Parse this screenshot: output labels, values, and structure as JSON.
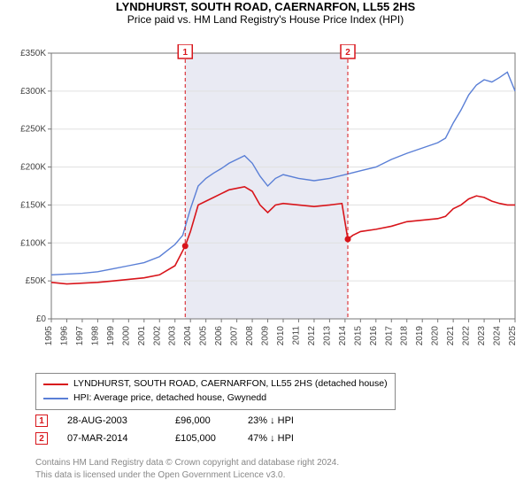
{
  "title": "LYNDHURST, SOUTH ROAD, CAERNARFON, LL55 2HS",
  "subtitle": "Price paid vs. HM Land Registry's House Price Index (HPI)",
  "title_fontsize": 13,
  "subtitle_fontsize": 12,
  "footer_fontsize": 10,
  "footer_color": "#888888",
  "chart": {
    "type": "line",
    "background_color": "#ffffff",
    "plot_border_color": "#777777",
    "grid_color": "#e0e0e0",
    "shaded_band_color": "#e9eaf3",
    "shaded_band_xstart": 2003.66,
    "shaded_band_xend": 2014.18,
    "xaxis": {
      "min": 1995,
      "max": 2025,
      "ticks": [
        1995,
        1996,
        1997,
        1998,
        1999,
        2000,
        2001,
        2002,
        2003,
        2004,
        2005,
        2006,
        2007,
        2008,
        2009,
        2010,
        2011,
        2012,
        2013,
        2014,
        2015,
        2016,
        2017,
        2018,
        2019,
        2020,
        2021,
        2022,
        2023,
        2024,
        2025
      ],
      "tick_fontsize": 10,
      "tick_rotation": -90,
      "tick_color": "#444444"
    },
    "yaxis": {
      "min": 0,
      "max": 350000,
      "ticks": [
        0,
        50000,
        100000,
        150000,
        200000,
        250000,
        300000,
        350000
      ],
      "tick_labels": [
        "£0",
        "£50K",
        "£100K",
        "£150K",
        "£200K",
        "£250K",
        "£300K",
        "£350K"
      ],
      "tick_fontsize": 10,
      "tick_color": "#444444"
    },
    "series": [
      {
        "name": "property",
        "label": "LYNDHURST, SOUTH ROAD, CAERNARFON, LL55 2HS (detached house)",
        "color": "#d8151b",
        "line_width": 1.6,
        "points": [
          [
            1995,
            48000
          ],
          [
            1996,
            46000
          ],
          [
            1997,
            47000
          ],
          [
            1998,
            48000
          ],
          [
            1999,
            50000
          ],
          [
            2000,
            52000
          ],
          [
            2001,
            54000
          ],
          [
            2002,
            58000
          ],
          [
            2003,
            70000
          ],
          [
            2003.66,
            96000
          ],
          [
            2004,
            115000
          ],
          [
            2004.5,
            150000
          ],
          [
            2005,
            155000
          ],
          [
            2005.5,
            160000
          ],
          [
            2006,
            165000
          ],
          [
            2006.5,
            170000
          ],
          [
            2007,
            172000
          ],
          [
            2007.5,
            174000
          ],
          [
            2008,
            168000
          ],
          [
            2008.5,
            150000
          ],
          [
            2009,
            140000
          ],
          [
            2009.5,
            150000
          ],
          [
            2010,
            152000
          ],
          [
            2011,
            150000
          ],
          [
            2012,
            148000
          ],
          [
            2013,
            150000
          ],
          [
            2013.8,
            152000
          ],
          [
            2014.18,
            105000
          ],
          [
            2014.5,
            110000
          ],
          [
            2015,
            115000
          ],
          [
            2016,
            118000
          ],
          [
            2017,
            122000
          ],
          [
            2018,
            128000
          ],
          [
            2019,
            130000
          ],
          [
            2020,
            132000
          ],
          [
            2020.5,
            135000
          ],
          [
            2021,
            145000
          ],
          [
            2021.5,
            150000
          ],
          [
            2022,
            158000
          ],
          [
            2022.5,
            162000
          ],
          [
            2023,
            160000
          ],
          [
            2023.5,
            155000
          ],
          [
            2024,
            152000
          ],
          [
            2024.5,
            150000
          ],
          [
            2025,
            150000
          ]
        ]
      },
      {
        "name": "hpi",
        "label": "HPI: Average price, detached house, Gwynedd",
        "color": "#5a7fd6",
        "line_width": 1.4,
        "points": [
          [
            1995,
            58000
          ],
          [
            1996,
            59000
          ],
          [
            1997,
            60000
          ],
          [
            1998,
            62000
          ],
          [
            1999,
            66000
          ],
          [
            2000,
            70000
          ],
          [
            2001,
            74000
          ],
          [
            2002,
            82000
          ],
          [
            2003,
            98000
          ],
          [
            2003.5,
            110000
          ],
          [
            2004,
            145000
          ],
          [
            2004.5,
            175000
          ],
          [
            2005,
            185000
          ],
          [
            2005.5,
            192000
          ],
          [
            2006,
            198000
          ],
          [
            2006.5,
            205000
          ],
          [
            2007,
            210000
          ],
          [
            2007.5,
            215000
          ],
          [
            2008,
            205000
          ],
          [
            2008.5,
            188000
          ],
          [
            2009,
            175000
          ],
          [
            2009.5,
            185000
          ],
          [
            2010,
            190000
          ],
          [
            2011,
            185000
          ],
          [
            2012,
            182000
          ],
          [
            2013,
            185000
          ],
          [
            2014,
            190000
          ],
          [
            2015,
            195000
          ],
          [
            2016,
            200000
          ],
          [
            2017,
            210000
          ],
          [
            2018,
            218000
          ],
          [
            2019,
            225000
          ],
          [
            2020,
            232000
          ],
          [
            2020.5,
            238000
          ],
          [
            2021,
            258000
          ],
          [
            2021.5,
            275000
          ],
          [
            2022,
            295000
          ],
          [
            2022.5,
            308000
          ],
          [
            2023,
            315000
          ],
          [
            2023.5,
            312000
          ],
          [
            2024,
            318000
          ],
          [
            2024.5,
            325000
          ],
          [
            2025,
            300000
          ]
        ]
      }
    ],
    "markers": [
      {
        "id": "1",
        "x": 2003.66,
        "y_top_label": true,
        "dot_y": 96000,
        "color": "#d8151b"
      },
      {
        "id": "2",
        "x": 2014.18,
        "y_top_label": true,
        "dot_y": 105000,
        "color": "#d8151b"
      }
    ],
    "marker_box_border": "#d8151b",
    "marker_box_text_color": "#d8151b",
    "marker_line_dash": "4,3",
    "marker_dot_radius": 3.5
  },
  "legend": {
    "border_color": "#888888",
    "fontsize": 10.5
  },
  "events": [
    {
      "id": "1",
      "date": "28-AUG-2003",
      "price": "£96,000",
      "diff": "23% ↓ HPI"
    },
    {
      "id": "2",
      "date": "07-MAR-2014",
      "price": "£105,000",
      "diff": "47% ↓ HPI"
    }
  ],
  "footer": {
    "line1": "Contains HM Land Registry data © Crown copyright and database right 2024.",
    "line2": "This data is licensed under the Open Government Licence v3.0."
  }
}
